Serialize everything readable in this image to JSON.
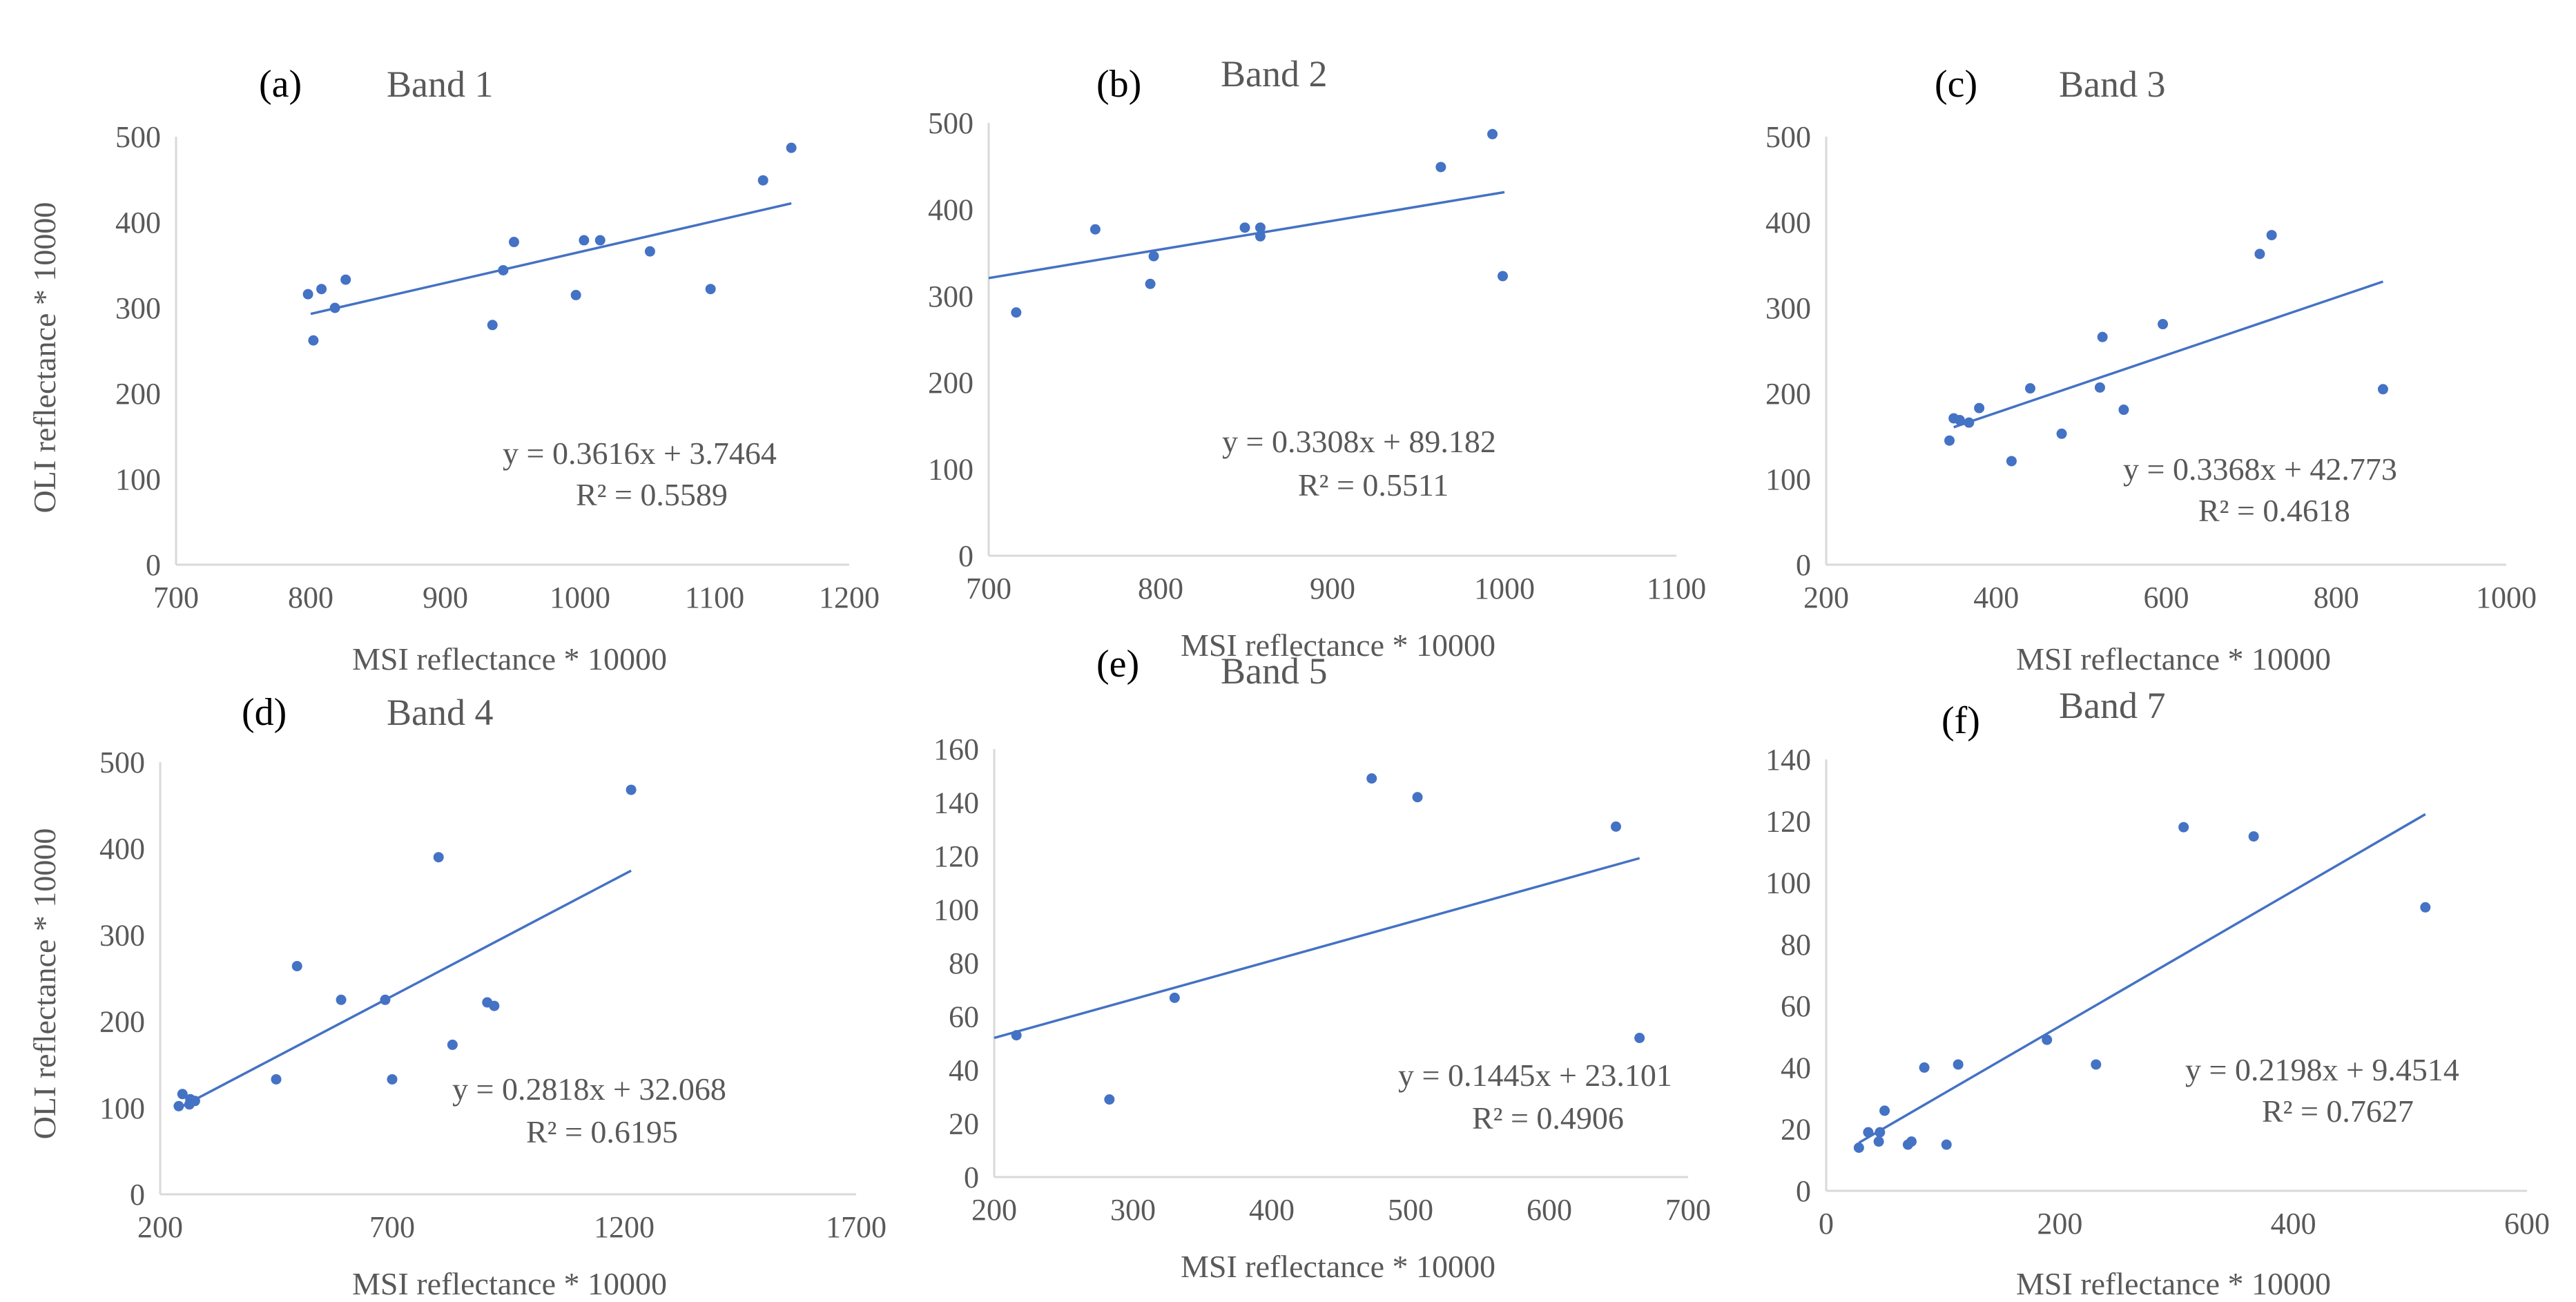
{
  "figure": {
    "colors": {
      "point": "#4472C4",
      "trendline": "#4472C4",
      "axis": "#D9D9D9",
      "text": "#595959",
      "letter": "#000000"
    }
  },
  "chart_data": [
    {
      "type": "scatter",
      "panel": "(a)",
      "title": "Band 1",
      "xlabel": "MSI reflectance * 10000",
      "ylabel": "OLI reflectance * 10000",
      "xlim": [
        700,
        1200
      ],
      "ylim": [
        0,
        500
      ],
      "xticks": [
        700,
        800,
        900,
        1000,
        1100,
        1200
      ],
      "yticks": [
        0,
        100,
        200,
        300,
        400,
        500
      ],
      "points": [
        [
          798,
          316
        ],
        [
          802,
          262
        ],
        [
          808,
          322
        ],
        [
          818,
          300
        ],
        [
          826,
          333
        ],
        [
          935,
          280
        ],
        [
          943,
          344
        ],
        [
          951,
          377
        ],
        [
          997,
          315
        ],
        [
          1003,
          379
        ],
        [
          1015,
          379
        ],
        [
          1052,
          366
        ],
        [
          1097,
          322
        ],
        [
          1136,
          449
        ],
        [
          1157,
          487
        ]
      ],
      "fit": {
        "slope": 0.3616,
        "intercept": 3.7464,
        "x_range": [
          800,
          1157
        ]
      },
      "equation": "y = 0.3616x + 3.7464",
      "r2": "R² = 0.5589"
    },
    {
      "type": "scatter",
      "panel": "(b)",
      "title": "Band 2",
      "xlabel": "MSI reflectance * 10000",
      "ylabel": "",
      "xlim": [
        700,
        1100
      ],
      "ylim": [
        0,
        500
      ],
      "xticks": [
        700,
        800,
        900,
        1000,
        1100
      ],
      "yticks": [
        0,
        100,
        200,
        300,
        400,
        500
      ],
      "points": [
        [
          716,
          281
        ],
        [
          762,
          377
        ],
        [
          794,
          314
        ],
        [
          796,
          346
        ],
        [
          849,
          379
        ],
        [
          858,
          369
        ],
        [
          858,
          379
        ],
        [
          963,
          449
        ],
        [
          993,
          487
        ],
        [
          999,
          323
        ]
      ],
      "fit": {
        "slope": 0.3308,
        "intercept": 89.182,
        "x_range": [
          700,
          1000
        ]
      },
      "equation": "y = 0.3308x + 89.182",
      "r2": "R² = 0.5511"
    },
    {
      "type": "scatter",
      "panel": "(c)",
      "title": "Band 3",
      "xlabel": "MSI reflectance * 10000",
      "ylabel": "",
      "xlim": [
        200,
        1000
      ],
      "ylim": [
        0,
        500
      ],
      "xticks": [
        200,
        400,
        600,
        800,
        1000
      ],
      "yticks": [
        0,
        100,
        200,
        300,
        400,
        500
      ],
      "points": [
        [
          345,
          145
        ],
        [
          350,
          171
        ],
        [
          357,
          169
        ],
        [
          368,
          166
        ],
        [
          380,
          183
        ],
        [
          418,
          121
        ],
        [
          440,
          206
        ],
        [
          477,
          153
        ],
        [
          522,
          207
        ],
        [
          525,
          266
        ],
        [
          550,
          181
        ],
        [
          596,
          281
        ],
        [
          710,
          363
        ],
        [
          724,
          385
        ],
        [
          855,
          205
        ]
      ],
      "fit": {
        "slope": 0.3368,
        "intercept": 42.773,
        "x_range": [
          350,
          855
        ]
      },
      "equation": "y = 0.3368x + 42.773",
      "r2": "R² = 0.4618"
    },
    {
      "type": "scatter",
      "panel": "(d)",
      "title": "Band 4",
      "xlabel": "MSI reflectance * 10000",
      "ylabel": "OLI reflectance * 10000",
      "xlim": [
        200,
        1700
      ],
      "ylim": [
        0,
        500
      ],
      "xticks": [
        200,
        700,
        1200,
        1700
      ],
      "yticks": [
        0,
        100,
        200,
        300,
        400,
        500
      ],
      "points": [
        [
          240,
          102
        ],
        [
          248,
          116
        ],
        [
          263,
          104
        ],
        [
          265,
          110
        ],
        [
          275,
          108
        ],
        [
          450,
          133
        ],
        [
          495,
          264
        ],
        [
          590,
          225
        ],
        [
          685,
          225
        ],
        [
          700,
          133
        ],
        [
          800,
          390
        ],
        [
          830,
          173
        ],
        [
          905,
          222
        ],
        [
          920,
          218
        ],
        [
          1215,
          468
        ]
      ],
      "fit": {
        "slope": 0.2818,
        "intercept": 32.068,
        "x_range": [
          240,
          1215
        ]
      },
      "equation": "y = 0.2818x + 32.068",
      "r2": "R² = 0.6195"
    },
    {
      "type": "scatter",
      "panel": "(e)",
      "title": "Band 5",
      "xlabel": "MSI reflectance * 10000",
      "ylabel": "",
      "xlim": [
        200,
        700
      ],
      "ylim": [
        0,
        160
      ],
      "xticks": [
        200,
        300,
        400,
        500,
        600,
        700
      ],
      "yticks": [
        0,
        20,
        40,
        60,
        80,
        100,
        120,
        140,
        160
      ],
      "points": [
        [
          216,
          53
        ],
        [
          283,
          29
        ],
        [
          330,
          67
        ],
        [
          472,
          149
        ],
        [
          505,
          142
        ],
        [
          648,
          131
        ],
        [
          665,
          52
        ]
      ],
      "fit": {
        "slope": 0.1445,
        "intercept": 23.101,
        "x_range": [
          200,
          665
        ]
      },
      "equation": "y = 0.1445x + 23.101",
      "r2": "R² = 0.4906"
    },
    {
      "type": "scatter",
      "panel": "(f)",
      "title": "Band 7",
      "xlabel": "MSI reflectance * 10000",
      "ylabel": "",
      "xlim": [
        0,
        600
      ],
      "ylim": [
        0,
        140
      ],
      "xticks": [
        0,
        200,
        400,
        600
      ],
      "yticks": [
        0,
        20,
        40,
        60,
        80,
        100,
        120,
        140
      ],
      "points": [
        [
          28,
          14
        ],
        [
          36,
          19
        ],
        [
          45,
          16
        ],
        [
          46,
          19
        ],
        [
          50,
          26
        ],
        [
          70,
          15
        ],
        [
          73,
          16
        ],
        [
          84,
          40
        ],
        [
          103,
          15
        ],
        [
          113,
          41
        ],
        [
          189,
          49
        ],
        [
          231,
          41
        ],
        [
          306,
          118
        ],
        [
          366,
          115
        ],
        [
          513,
          92
        ]
      ],
      "fit": {
        "slope": 0.2198,
        "intercept": 9.4514,
        "x_range": [
          28,
          513
        ]
      },
      "equation": "y = 0.2198x + 9.4514",
      "r2": "R² = 0.7627"
    }
  ]
}
